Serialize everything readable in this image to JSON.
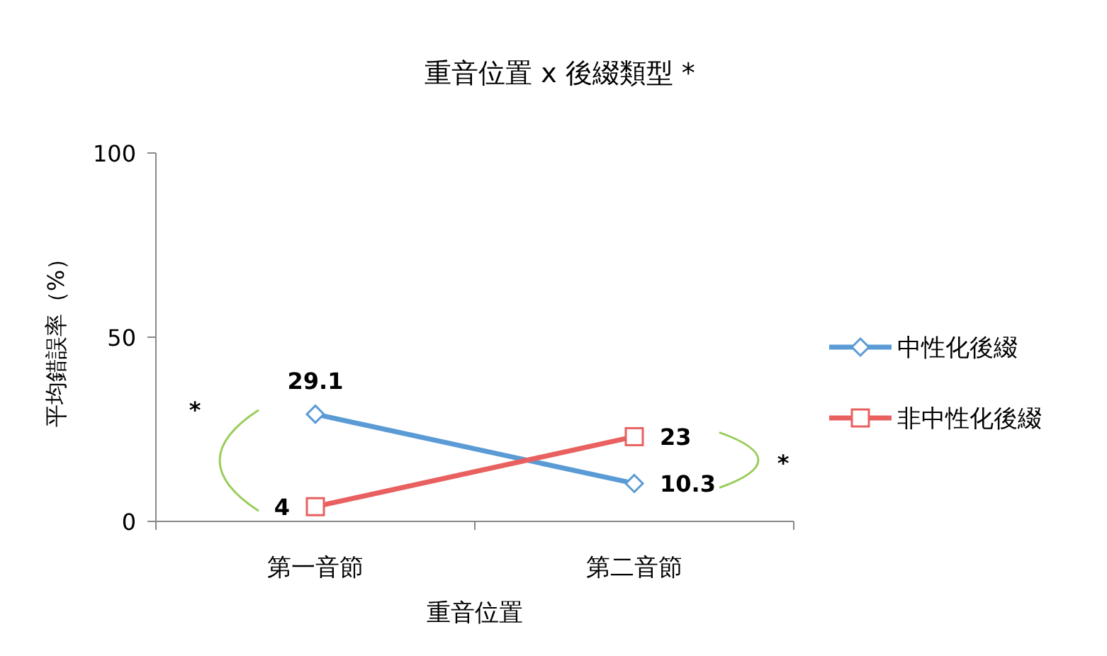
{
  "chart_data": {
    "type": "line",
    "title": "重音位置 x 後綴類型 *",
    "xlabel": "重音位置",
    "ylabel": "平均錯誤率（%）",
    "categories": [
      "第一音節",
      "第二音節"
    ],
    "series": [
      {
        "name": "中性化後綴",
        "color": "#5b9bd5",
        "marker": "diamond",
        "values": [
          29.1,
          10.3
        ]
      },
      {
        "name": "非中性化後綴",
        "color": "#e8605f",
        "marker": "square",
        "values": [
          4,
          23
        ]
      }
    ],
    "ylim": [
      0,
      100
    ],
    "yticks": [
      0,
      50,
      100
    ],
    "grid": false,
    "legend": "right",
    "data_labels": true,
    "annotations": [
      "*",
      "*"
    ]
  }
}
